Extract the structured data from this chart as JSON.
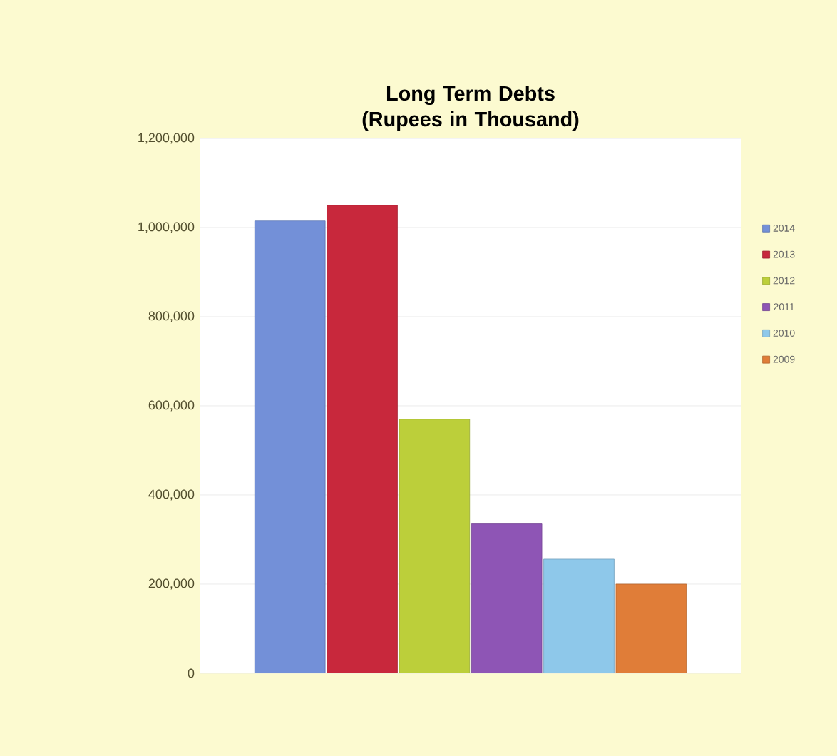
{
  "chart_data": {
    "type": "bar",
    "title": "Long Term  Debts (Rupees in Thousand)",
    "categories": [
      null
    ],
    "series": [
      {
        "name": "2014",
        "color": "#7390d8",
        "values": [
          1015000
        ]
      },
      {
        "name": "2013",
        "color": "#c8283c",
        "values": [
          1050000
        ]
      },
      {
        "name": "2012",
        "color": "#bccf3a",
        "values": [
          570000
        ]
      },
      {
        "name": "2011",
        "color": "#8e55b5",
        "values": [
          335000
        ]
      },
      {
        "name": "2010",
        "color": "#8ec8ea",
        "values": [
          256000
        ]
      },
      {
        "name": "2009",
        "color": "#e07d38",
        "values": [
          200000
        ]
      }
    ],
    "ylim": [
      0,
      1200000
    ],
    "yticks": [
      {
        "value": 0,
        "label": "0"
      },
      {
        "value": 200000,
        "label": "200,000"
      },
      {
        "value": 400000,
        "label": "400,000"
      },
      {
        "value": 600000,
        "label": "600,000"
      },
      {
        "value": 800000,
        "label": "800,000"
      },
      {
        "value": 1000000,
        "label": "1,000,000"
      },
      {
        "value": 1200000,
        "label": "1,200,000"
      }
    ],
    "grid": "y",
    "legend": "right"
  }
}
